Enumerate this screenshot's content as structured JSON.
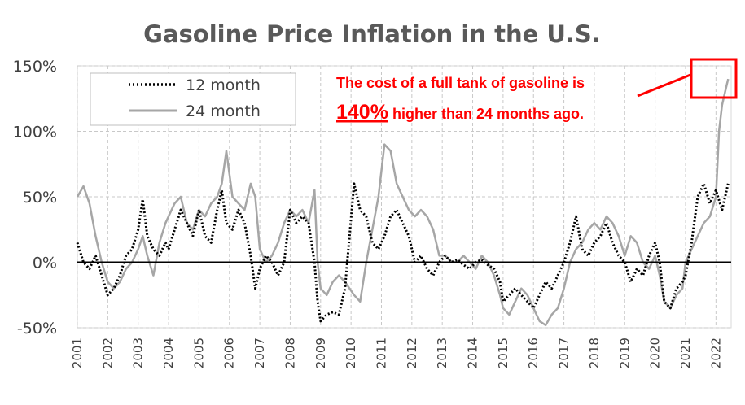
{
  "chart_data": {
    "type": "line",
    "title": "Gasoline Price Inflation in the U.S.",
    "xlabel": "",
    "ylabel": "",
    "x_range": [
      2001,
      2022.5
    ],
    "ylim": [
      -50,
      150
    ],
    "y_ticks": [
      -50,
      0,
      50,
      100,
      150
    ],
    "y_tick_labels": [
      "-50%",
      "0%",
      "50%",
      "100%",
      "150%"
    ],
    "x_ticks": [
      2001,
      2002,
      2003,
      2004,
      2005,
      2006,
      2007,
      2008,
      2009,
      2010,
      2011,
      2012,
      2013,
      2014,
      2015,
      2016,
      2017,
      2018,
      2019,
      2020,
      2021,
      2022
    ],
    "x_tick_labels": [
      "2001",
      "2002",
      "2003",
      "2004",
      "2005",
      "2006",
      "2007",
      "2008",
      "2009",
      "2010",
      "2011",
      "2012",
      "2013",
      "2014",
      "2015",
      "2016",
      "2017",
      "2018",
      "2019",
      "2020",
      "2021",
      "2022"
    ],
    "grid": true,
    "legend_position": "top-left",
    "series": [
      {
        "name": "12 month",
        "style": "dotted",
        "color": "#000000",
        "x": [
          2001.0,
          2001.2,
          2001.4,
          2001.6,
          2001.8,
          2002.0,
          2002.2,
          2002.4,
          2002.6,
          2002.8,
          2003.0,
          2003.15,
          2003.3,
          2003.5,
          2003.7,
          2003.9,
          2004.0,
          2004.2,
          2004.4,
          2004.6,
          2004.8,
          2005.0,
          2005.2,
          2005.4,
          2005.6,
          2005.75,
          2005.9,
          2006.1,
          2006.3,
          2006.5,
          2006.7,
          2006.85,
          2007.0,
          2007.2,
          2007.4,
          2007.6,
          2007.8,
          2008.0,
          2008.2,
          2008.4,
          2008.6,
          2008.8,
          2008.9,
          2009.0,
          2009.2,
          2009.4,
          2009.6,
          2009.8,
          2009.95,
          2010.1,
          2010.3,
          2010.5,
          2010.7,
          2010.9,
          2011.1,
          2011.3,
          2011.5,
          2011.7,
          2011.9,
          2012.1,
          2012.3,
          2012.5,
          2012.7,
          2012.9,
          2013.1,
          2013.3,
          2013.5,
          2013.7,
          2013.9,
          2014.1,
          2014.3,
          2014.5,
          2014.7,
          2014.9,
          2015.0,
          2015.2,
          2015.4,
          2015.6,
          2015.8,
          2016.0,
          2016.2,
          2016.4,
          2016.6,
          2016.8,
          2017.0,
          2017.2,
          2017.4,
          2017.6,
          2017.8,
          2018.0,
          2018.2,
          2018.4,
          2018.6,
          2018.8,
          2019.0,
          2019.2,
          2019.4,
          2019.6,
          2019.8,
          2020.0,
          2020.15,
          2020.3,
          2020.5,
          2020.7,
          2020.9,
          2021.0,
          2021.2,
          2021.4,
          2021.6,
          2021.8,
          2022.0,
          2022.2,
          2022.4
        ],
        "y": [
          15,
          0,
          -5,
          5,
          -10,
          -25,
          -20,
          -10,
          5,
          10,
          25,
          48,
          20,
          10,
          5,
          15,
          10,
          25,
          40,
          30,
          20,
          40,
          20,
          15,
          40,
          55,
          30,
          25,
          40,
          30,
          5,
          -20,
          -5,
          5,
          0,
          -10,
          0,
          40,
          30,
          35,
          30,
          0,
          -30,
          -45,
          -40,
          -38,
          -40,
          -20,
          20,
          60,
          40,
          35,
          15,
          10,
          20,
          35,
          40,
          30,
          20,
          0,
          5,
          -5,
          -10,
          0,
          5,
          0,
          2,
          -2,
          -5,
          0,
          2,
          -2,
          -5,
          -15,
          -30,
          -25,
          -20,
          -25,
          -30,
          -35,
          -25,
          -15,
          -20,
          -10,
          0,
          15,
          35,
          10,
          5,
          15,
          20,
          30,
          15,
          5,
          0,
          -15,
          -5,
          -10,
          5,
          15,
          0,
          -30,
          -35,
          -20,
          -15,
          -10,
          15,
          50,
          60,
          45,
          55,
          40,
          60
        ]
      },
      {
        "name": "24 month",
        "style": "solid",
        "color": "#a6a6a6",
        "x": [
          2001.0,
          2001.2,
          2001.4,
          2001.6,
          2001.8,
          2002.0,
          2002.2,
          2002.4,
          2002.6,
          2002.8,
          2003.0,
          2003.15,
          2003.3,
          2003.5,
          2003.7,
          2003.9,
          2004.0,
          2004.2,
          2004.4,
          2004.6,
          2004.8,
          2005.0,
          2005.2,
          2005.4,
          2005.6,
          2005.75,
          2005.9,
          2006.1,
          2006.3,
          2006.5,
          2006.7,
          2006.85,
          2007.0,
          2007.2,
          2007.4,
          2007.6,
          2007.8,
          2008.0,
          2008.2,
          2008.4,
          2008.6,
          2008.8,
          2008.9,
          2009.0,
          2009.2,
          2009.4,
          2009.6,
          2009.8,
          2009.95,
          2010.1,
          2010.3,
          2010.5,
          2010.7,
          2010.9,
          2011.1,
          2011.3,
          2011.5,
          2011.7,
          2011.9,
          2012.1,
          2012.3,
          2012.5,
          2012.7,
          2012.9,
          2013.1,
          2013.3,
          2013.5,
          2013.7,
          2013.9,
          2014.1,
          2014.3,
          2014.5,
          2014.7,
          2014.9,
          2015.0,
          2015.2,
          2015.4,
          2015.6,
          2015.8,
          2016.0,
          2016.2,
          2016.4,
          2016.6,
          2016.8,
          2017.0,
          2017.2,
          2017.4,
          2017.6,
          2017.8,
          2018.0,
          2018.2,
          2018.4,
          2018.6,
          2018.8,
          2019.0,
          2019.2,
          2019.4,
          2019.6,
          2019.8,
          2020.0,
          2020.15,
          2020.3,
          2020.5,
          2020.7,
          2020.9,
          2021.0,
          2021.2,
          2021.4,
          2021.6,
          2021.8,
          2022.0,
          2022.1,
          2022.2,
          2022.3,
          2022.4
        ],
        "y": [
          50,
          58,
          45,
          20,
          0,
          -15,
          -20,
          -15,
          -5,
          0,
          10,
          20,
          5,
          -10,
          15,
          30,
          35,
          45,
          50,
          30,
          25,
          40,
          35,
          45,
          50,
          60,
          85,
          50,
          45,
          40,
          60,
          50,
          10,
          0,
          5,
          15,
          30,
          40,
          35,
          40,
          30,
          55,
          0,
          -20,
          -25,
          -15,
          -10,
          -15,
          -20,
          -25,
          -30,
          0,
          25,
          50,
          90,
          85,
          60,
          50,
          40,
          35,
          40,
          35,
          25,
          5,
          5,
          0,
          0,
          5,
          0,
          -5,
          5,
          0,
          -10,
          -25,
          -35,
          -40,
          -30,
          -20,
          -25,
          -35,
          -45,
          -48,
          -40,
          -35,
          -20,
          0,
          10,
          15,
          25,
          30,
          25,
          35,
          30,
          20,
          5,
          20,
          15,
          0,
          -5,
          5,
          -10,
          -30,
          -35,
          -25,
          -20,
          0,
          10,
          20,
          30,
          35,
          50,
          100,
          120,
          130,
          140
        ]
      }
    ],
    "annotation": {
      "line1": "The cost of a full tank of gasoline is",
      "highlight": "140%",
      "line2": " higher than 24 months ago.",
      "color": "#ff0000"
    }
  }
}
